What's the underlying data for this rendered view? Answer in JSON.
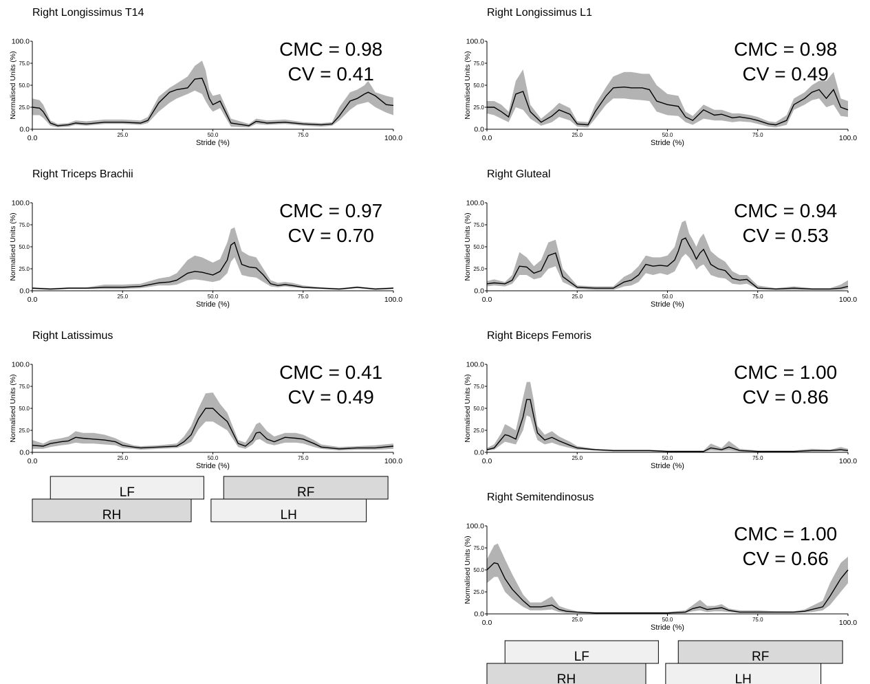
{
  "chart_data": [
    {
      "type": "area",
      "title": "Right Longissimus T14",
      "xlabel": "Stride (%)",
      "ylabel": "Normalised Units (%)",
      "xlim": [
        0,
        100
      ],
      "ylim": [
        0,
        100
      ],
      "xticks": [
        "0.0",
        "25.0",
        "50.0",
        "75.0",
        "100.0"
      ],
      "yticks": [
        "0.0",
        "25.0",
        "50.0",
        "75.0",
        "100.0"
      ],
      "annotations": [
        "CMC = 0.98",
        "CV = 0.41"
      ],
      "x": [
        0,
        2,
        3,
        5,
        7,
        10,
        12,
        15,
        20,
        25,
        30,
        32,
        35,
        38,
        40,
        43,
        45,
        47,
        48,
        49,
        50,
        52,
        55,
        60,
        62,
        65,
        70,
        75,
        80,
        83,
        85,
        88,
        90,
        92,
        93,
        95,
        98,
        100
      ],
      "mean": [
        25,
        24,
        20,
        7,
        4,
        5,
        7,
        6,
        8,
        8,
        7,
        10,
        30,
        42,
        45,
        47,
        57,
        58,
        48,
        35,
        28,
        32,
        7,
        4,
        9,
        7,
        8,
        6,
        5,
        6,
        15,
        32,
        35,
        40,
        42,
        38,
        28,
        27
      ],
      "upper": [
        35,
        33,
        28,
        10,
        6,
        7,
        10,
        9,
        11,
        11,
        10,
        14,
        37,
        47,
        52,
        60,
        72,
        78,
        67,
        45,
        38,
        40,
        12,
        6,
        12,
        10,
        11,
        8,
        7,
        8,
        25,
        42,
        45,
        50,
        55,
        42,
        38,
        36
      ],
      "lower": [
        16,
        16,
        13,
        4,
        2,
        3,
        5,
        4,
        6,
        6,
        5,
        7,
        20,
        30,
        35,
        40,
        44,
        40,
        32,
        25,
        20,
        24,
        3,
        2,
        6,
        5,
        6,
        4,
        3,
        4,
        10,
        22,
        28,
        30,
        31,
        25,
        19,
        16
      ]
    },
    {
      "type": "area",
      "title": "Right Longissimus L1",
      "xlabel": "Stride (%)",
      "ylabel": "Normalised Units (%)",
      "xlim": [
        0,
        100
      ],
      "ylim": [
        0,
        100
      ],
      "xticks": [
        "0.0",
        "25.0",
        "50.0",
        "75.0",
        "100.0"
      ],
      "yticks": [
        "0.0",
        "25.0",
        "50.0",
        "75.0",
        "100.0"
      ],
      "annotations": [
        "CMC = 0.98",
        "CV = 0.49"
      ],
      "x": [
        0,
        2,
        4,
        6,
        8,
        10,
        12,
        15,
        18,
        20,
        23,
        25,
        28,
        30,
        33,
        35,
        38,
        40,
        43,
        45,
        47,
        50,
        53,
        55,
        57,
        60,
        63,
        65,
        68,
        70,
        73,
        75,
        78,
        80,
        83,
        85,
        88,
        90,
        92,
        94,
        96,
        98,
        100
      ],
      "mean": [
        25,
        25,
        20,
        14,
        40,
        43,
        20,
        8,
        15,
        22,
        17,
        6,
        5,
        20,
        38,
        47,
        48,
        47,
        47,
        45,
        32,
        28,
        26,
        14,
        10,
        22,
        16,
        17,
        13,
        14,
        12,
        10,
        6,
        5,
        10,
        28,
        35,
        42,
        45,
        35,
        45,
        25,
        22
      ],
      "upper": [
        32,
        32,
        28,
        20,
        55,
        68,
        28,
        12,
        22,
        30,
        24,
        9,
        8,
        28,
        48,
        60,
        65,
        65,
        63,
        63,
        50,
        40,
        38,
        20,
        15,
        28,
        22,
        22,
        18,
        18,
        16,
        14,
        9,
        8,
        16,
        35,
        42,
        50,
        55,
        55,
        65,
        35,
        32
      ],
      "lower": [
        18,
        16,
        12,
        8,
        25,
        22,
        12,
        4,
        8,
        14,
        10,
        3,
        2,
        12,
        28,
        35,
        35,
        34,
        33,
        32,
        20,
        16,
        15,
        8,
        5,
        12,
        10,
        10,
        8,
        9,
        8,
        6,
        3,
        2,
        5,
        22,
        28,
        33,
        35,
        25,
        28,
        15,
        14
      ]
    },
    {
      "type": "area",
      "title": "Right Triceps Brachii",
      "xlabel": "Stride (%)",
      "ylabel": "Normalised Units (%)",
      "xlim": [
        0,
        100
      ],
      "ylim": [
        0,
        100
      ],
      "xticks": [
        "0.0",
        "25.0",
        "50.0",
        "75.0",
        "100.0"
      ],
      "yticks": [
        "0.0",
        "25.0",
        "50.0",
        "75.0",
        "100.0"
      ],
      "annotations": [
        "CMC = 0.97",
        "CV = 0.70"
      ],
      "x": [
        0,
        5,
        10,
        15,
        20,
        25,
        30,
        35,
        38,
        40,
        43,
        45,
        47,
        50,
        52,
        54,
        55,
        56,
        57,
        58,
        60,
        62,
        64,
        66,
        68,
        70,
        72,
        75,
        80,
        85,
        90,
        95,
        100
      ],
      "mean": [
        3,
        2,
        3,
        3,
        4,
        4,
        5,
        9,
        10,
        12,
        20,
        22,
        21,
        18,
        22,
        35,
        52,
        55,
        42,
        30,
        27,
        26,
        18,
        8,
        6,
        7,
        6,
        4,
        3,
        2,
        4,
        2,
        3
      ],
      "upper": [
        4,
        3,
        4,
        4,
        7,
        7,
        8,
        14,
        16,
        20,
        35,
        40,
        38,
        32,
        36,
        55,
        70,
        72,
        58,
        45,
        40,
        38,
        25,
        12,
        9,
        10,
        9,
        6,
        4,
        3,
        5,
        3,
        4
      ],
      "lower": [
        2,
        1,
        2,
        2,
        2,
        2,
        3,
        6,
        6,
        7,
        12,
        13,
        12,
        10,
        12,
        20,
        33,
        38,
        28,
        18,
        16,
        15,
        10,
        5,
        4,
        5,
        4,
        3,
        2,
        1,
        3,
        1,
        2
      ]
    },
    {
      "type": "area",
      "title": "Right Gluteal",
      "xlabel": "Stride (%)",
      "ylabel": "Normalised Units (%)",
      "xlim": [
        0,
        100
      ],
      "ylim": [
        0,
        100
      ],
      "xticks": [
        "0.0",
        "25.0",
        "50.0",
        "75.0",
        "100.0"
      ],
      "yticks": [
        "0.0",
        "25.0",
        "50.0",
        "75.0",
        "100.0"
      ],
      "annotations": [
        "CMC = 0.94",
        "CV = 0.53"
      ],
      "x": [
        0,
        2,
        5,
        7,
        9,
        11,
        13,
        15,
        17,
        19,
        21,
        25,
        30,
        35,
        38,
        40,
        42,
        44,
        46,
        48,
        50,
        52,
        53,
        54,
        55,
        56,
        57,
        58,
        59,
        60,
        62,
        64,
        66,
        68,
        70,
        72,
        75,
        80,
        85,
        90,
        95,
        98,
        100
      ],
      "mean": [
        8,
        9,
        8,
        12,
        28,
        27,
        20,
        23,
        40,
        43,
        16,
        4,
        3,
        3,
        10,
        12,
        18,
        30,
        28,
        29,
        28,
        35,
        45,
        58,
        60,
        52,
        45,
        36,
        43,
        47,
        30,
        25,
        23,
        14,
        12,
        13,
        3,
        2,
        3,
        2,
        2,
        3,
        5
      ],
      "upper": [
        11,
        13,
        10,
        18,
        44,
        38,
        28,
        35,
        55,
        58,
        25,
        6,
        5,
        5,
        16,
        20,
        28,
        40,
        38,
        38,
        40,
        50,
        65,
        78,
        80,
        65,
        58,
        50,
        60,
        65,
        45,
        38,
        33,
        22,
        18,
        18,
        6,
        3,
        5,
        3,
        3,
        7,
        12
      ],
      "lower": [
        5,
        6,
        5,
        8,
        18,
        18,
        13,
        15,
        25,
        28,
        10,
        2,
        1,
        1,
        5,
        6,
        10,
        20,
        18,
        20,
        18,
        22,
        30,
        38,
        42,
        38,
        32,
        24,
        28,
        30,
        18,
        15,
        14,
        8,
        7,
        8,
        2,
        1,
        1,
        1,
        1,
        1,
        2
      ]
    },
    {
      "type": "area",
      "title": "Right Latissimus",
      "xlabel": "Stride (%)",
      "ylabel": "Normalised Units (%)",
      "xlim": [
        0,
        100
      ],
      "ylim": [
        0,
        100
      ],
      "xticks": [
        "0.0",
        "25.0",
        "50.0",
        "75.0",
        "100.0"
      ],
      "yticks": [
        "0.0",
        "25.0",
        "50.0",
        "75.0",
        "100.0"
      ],
      "annotations": [
        "CMC = 0.41",
        "CV = 0.49"
      ],
      "x": [
        0,
        3,
        5,
        8,
        10,
        12,
        14,
        17,
        20,
        23,
        25,
        28,
        30,
        35,
        40,
        42,
        44,
        46,
        48,
        50,
        52,
        54,
        57,
        59,
        61,
        62,
        63,
        65,
        67,
        70,
        73,
        75,
        78,
        80,
        85,
        90,
        95,
        100
      ],
      "mean": [
        8,
        7,
        10,
        12,
        13,
        17,
        16,
        15,
        14,
        12,
        8,
        6,
        5,
        6,
        7,
        12,
        20,
        38,
        50,
        50,
        42,
        35,
        10,
        7,
        14,
        22,
        23,
        15,
        12,
        17,
        16,
        15,
        10,
        6,
        4,
        5,
        5,
        7
      ],
      "upper": [
        14,
        10,
        14,
        16,
        18,
        24,
        22,
        22,
        20,
        16,
        12,
        8,
        7,
        8,
        10,
        18,
        30,
        50,
        67,
        68,
        55,
        45,
        14,
        11,
        24,
        32,
        34,
        24,
        18,
        22,
        22,
        20,
        14,
        9,
        6,
        7,
        8,
        10
      ],
      "lower": [
        4,
        4,
        6,
        8,
        9,
        11,
        10,
        10,
        9,
        8,
        5,
        4,
        3,
        4,
        5,
        8,
        12,
        26,
        35,
        35,
        30,
        25,
        6,
        4,
        9,
        14,
        15,
        10,
        8,
        11,
        11,
        10,
        6,
        4,
        2,
        3,
        3,
        4
      ]
    },
    {
      "type": "area",
      "title": "Right Biceps Femoris",
      "xlabel": "Stride (%)",
      "ylabel": "Normalised Units (%)",
      "xlim": [
        0,
        100
      ],
      "ylim": [
        0,
        100
      ],
      "xticks": [
        "0.0",
        "25.0",
        "50.0",
        "75.0",
        "100.0"
      ],
      "yticks": [
        "0.0",
        "25.0",
        "50.0",
        "75.0",
        "100.0"
      ],
      "annotations": [
        "CMC = 1.00",
        "CV = 0.86"
      ],
      "x": [
        0,
        2,
        4,
        5,
        6,
        8,
        10,
        11,
        12,
        13,
        14,
        16,
        18,
        20,
        23,
        25,
        30,
        35,
        40,
        45,
        50,
        55,
        60,
        62,
        65,
        67,
        70,
        75,
        80,
        85,
        90,
        95,
        98,
        100
      ],
      "mean": [
        3,
        5,
        15,
        20,
        19,
        15,
        40,
        60,
        60,
        40,
        22,
        14,
        17,
        13,
        8,
        5,
        3,
        2,
        2,
        2,
        1,
        1,
        1,
        5,
        3,
        6,
        2,
        1,
        1,
        1,
        2,
        2,
        3,
        2
      ],
      "upper": [
        5,
        9,
        22,
        32,
        30,
        25,
        62,
        80,
        80,
        58,
        30,
        20,
        24,
        18,
        12,
        7,
        4,
        3,
        3,
        3,
        2,
        2,
        2,
        10,
        5,
        13,
        4,
        2,
        2,
        2,
        4,
        3,
        6,
        4
      ],
      "lower": [
        2,
        3,
        9,
        12,
        11,
        9,
        25,
        42,
        40,
        25,
        14,
        9,
        11,
        8,
        5,
        3,
        2,
        1,
        1,
        1,
        0.5,
        0.5,
        0.5,
        2,
        1.5,
        2,
        1,
        0.5,
        0.5,
        0.5,
        1,
        1,
        1.5,
        1
      ]
    },
    {
      "type": "area",
      "title": "Right Semitendinosus",
      "xlabel": "Stride (%)",
      "ylabel": "Normalised Units (%)",
      "xlim": [
        0,
        100
      ],
      "ylim": [
        0,
        100
      ],
      "xticks": [
        "0.0",
        "25.0",
        "50.0",
        "75.0",
        "100.0"
      ],
      "yticks": [
        "0.0",
        "25.0",
        "50.0",
        "75.0",
        "100.0"
      ],
      "annotations": [
        "CMC = 1.00",
        "CV = 0.66"
      ],
      "x": [
        0,
        2,
        3,
        5,
        7,
        10,
        12,
        15,
        18,
        20,
        22,
        25,
        30,
        35,
        40,
        45,
        50,
        55,
        57,
        59,
        61,
        63,
        65,
        67,
        70,
        75,
        80,
        85,
        88,
        90,
        93,
        95,
        98,
        100
      ],
      "mean": [
        50,
        58,
        57,
        40,
        28,
        15,
        8,
        8,
        10,
        5,
        3,
        2,
        1,
        1,
        1,
        1,
        1,
        2,
        6,
        8,
        5,
        6,
        7,
        4,
        2,
        2,
        2,
        2,
        3,
        5,
        8,
        20,
        40,
        50
      ],
      "upper": [
        62,
        78,
        80,
        62,
        45,
        22,
        13,
        13,
        20,
        9,
        6,
        3,
        2,
        2,
        2,
        2,
        2,
        4,
        10,
        16,
        9,
        9,
        11,
        6,
        4,
        4,
        3,
        3,
        5,
        9,
        15,
        35,
        58,
        65
      ],
      "lower": [
        35,
        42,
        42,
        25,
        17,
        8,
        4,
        4,
        5,
        2,
        1,
        1,
        0.5,
        0.5,
        0.5,
        0.5,
        0.5,
        1,
        3,
        4,
        2,
        3,
        3,
        2,
        1,
        1,
        1,
        1,
        1.5,
        2,
        4,
        10,
        25,
        35
      ]
    }
  ],
  "gait_bars": [
    [
      {
        "label": "LF",
        "start": 5,
        "end": 47.5,
        "fill": "#f0f0f0"
      },
      {
        "label": "RF",
        "start": 53,
        "end": 98.5,
        "fill": "#d9d9d9"
      },
      {
        "label": "RH",
        "start": 0,
        "end": 44,
        "fill": "#d9d9d9"
      },
      {
        "label": "LH",
        "start": 49.5,
        "end": 92.5,
        "fill": "#f0f0f0"
      }
    ],
    [
      {
        "label": "LF",
        "start": 5,
        "end": 47.5,
        "fill": "#f0f0f0"
      },
      {
        "label": "RF",
        "start": 53,
        "end": 98.5,
        "fill": "#d9d9d9"
      },
      {
        "label": "RH",
        "start": 0,
        "end": 44,
        "fill": "#d9d9d9"
      },
      {
        "label": "LH",
        "start": 49.5,
        "end": 92.5,
        "fill": "#f0f0f0"
      }
    ]
  ],
  "colors": {
    "band": "#b3b3b3",
    "line": "#000000",
    "axis": "#000000"
  }
}
